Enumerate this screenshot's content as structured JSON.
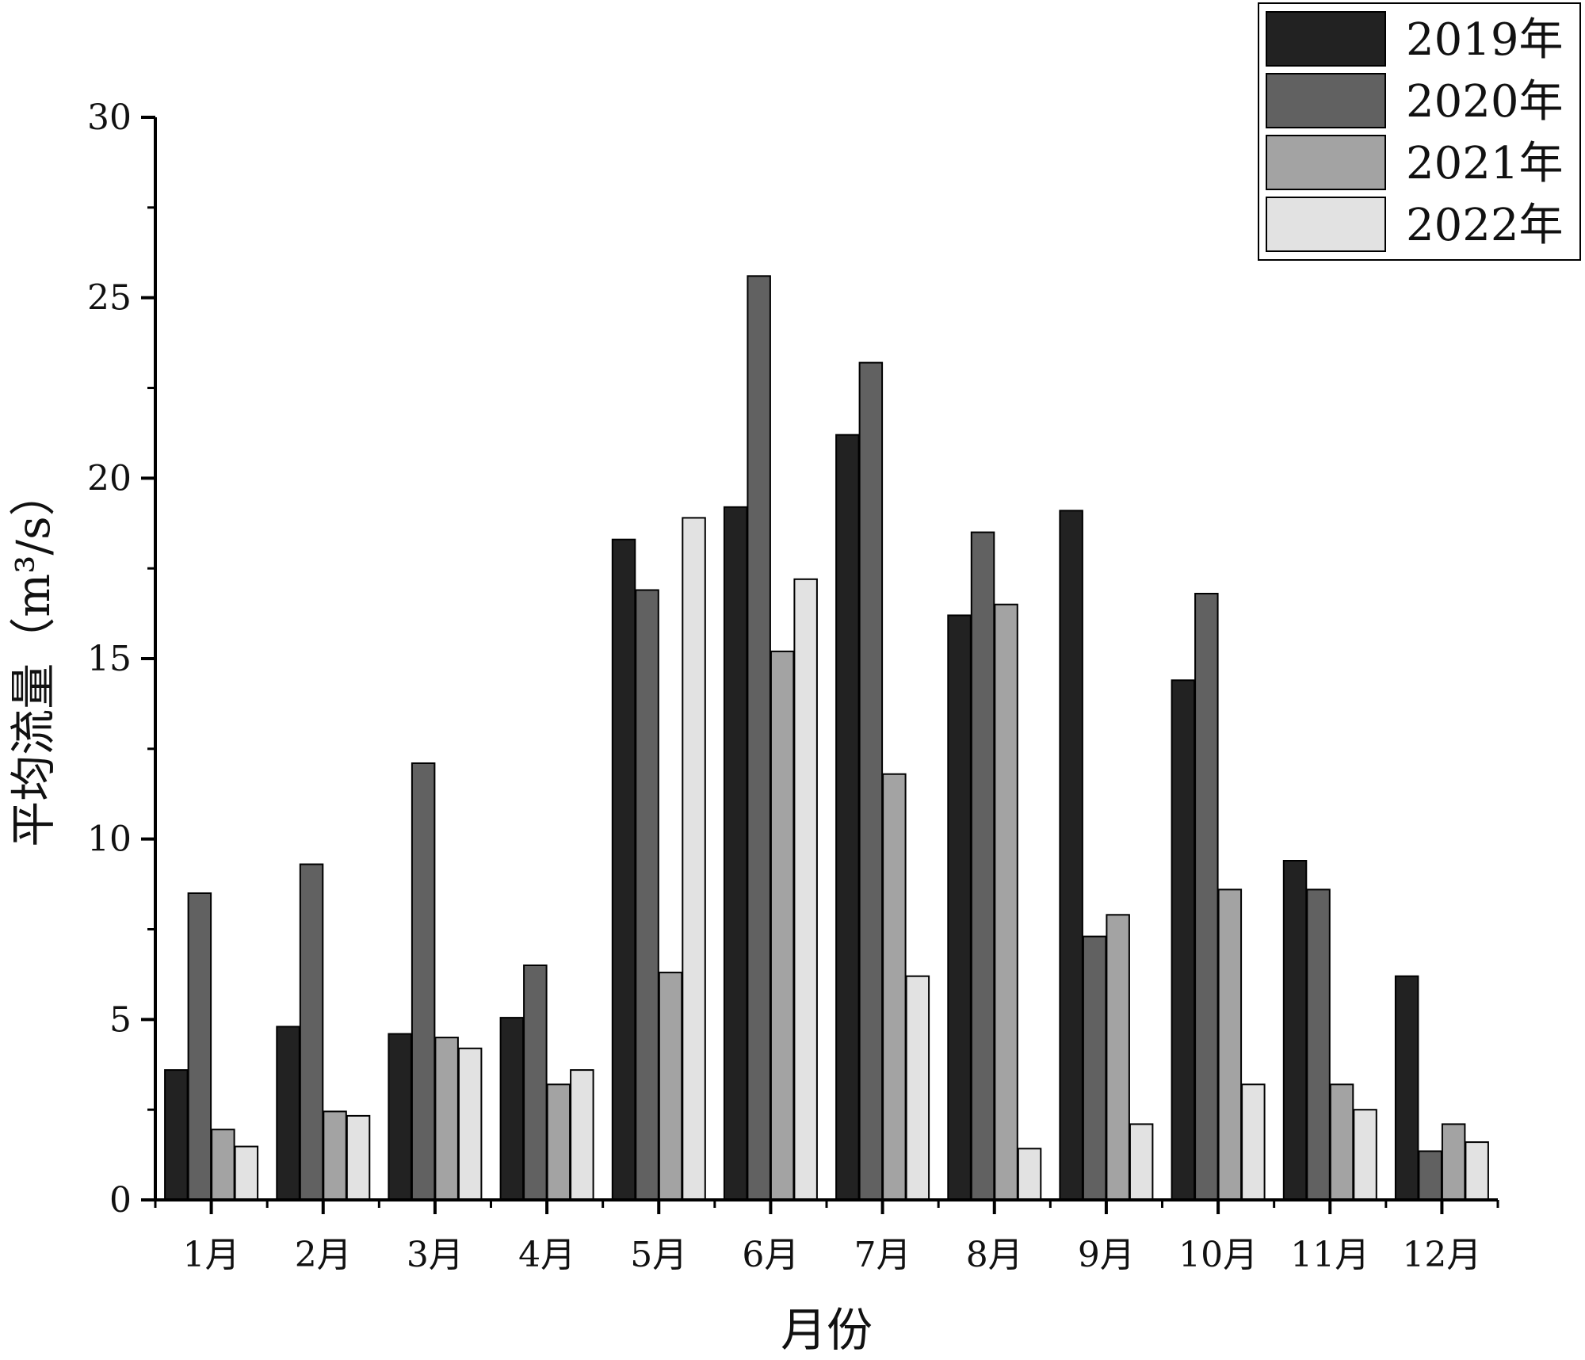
{
  "chart_data": {
    "type": "bar",
    "title": "",
    "xlabel": "月份",
    "ylabel": "平均流量（m³/s）",
    "ylim": [
      0,
      30
    ],
    "yticks": [
      0,
      5,
      10,
      15,
      20,
      25,
      30
    ],
    "grid": false,
    "legend_position": "top-right",
    "categories": [
      "1月",
      "2月",
      "3月",
      "4月",
      "5月",
      "6月",
      "7月",
      "8月",
      "9月",
      "10月",
      "11月",
      "12月"
    ],
    "series": [
      {
        "name": "2019年",
        "color": "#222222",
        "values": [
          3.6,
          4.8,
          4.6,
          5.05,
          18.3,
          19.2,
          21.2,
          16.2,
          19.1,
          14.4,
          9.4,
          6.2
        ]
      },
      {
        "name": "2020年",
        "color": "#616161",
        "values": [
          8.5,
          9.3,
          12.1,
          6.5,
          16.9,
          25.6,
          23.2,
          18.5,
          7.3,
          16.8,
          8.6,
          1.35
        ]
      },
      {
        "name": "2021年",
        "color": "#a3a3a3",
        "values": [
          1.95,
          2.45,
          4.5,
          3.2,
          6.3,
          15.2,
          11.8,
          16.5,
          7.9,
          8.6,
          3.2,
          2.1
        ]
      },
      {
        "name": "2022年",
        "color": "#e2e2e2",
        "values": [
          1.48,
          2.33,
          4.2,
          3.6,
          18.9,
          17.2,
          6.2,
          1.42,
          2.1,
          3.2,
          2.5,
          1.6
        ]
      }
    ]
  }
}
